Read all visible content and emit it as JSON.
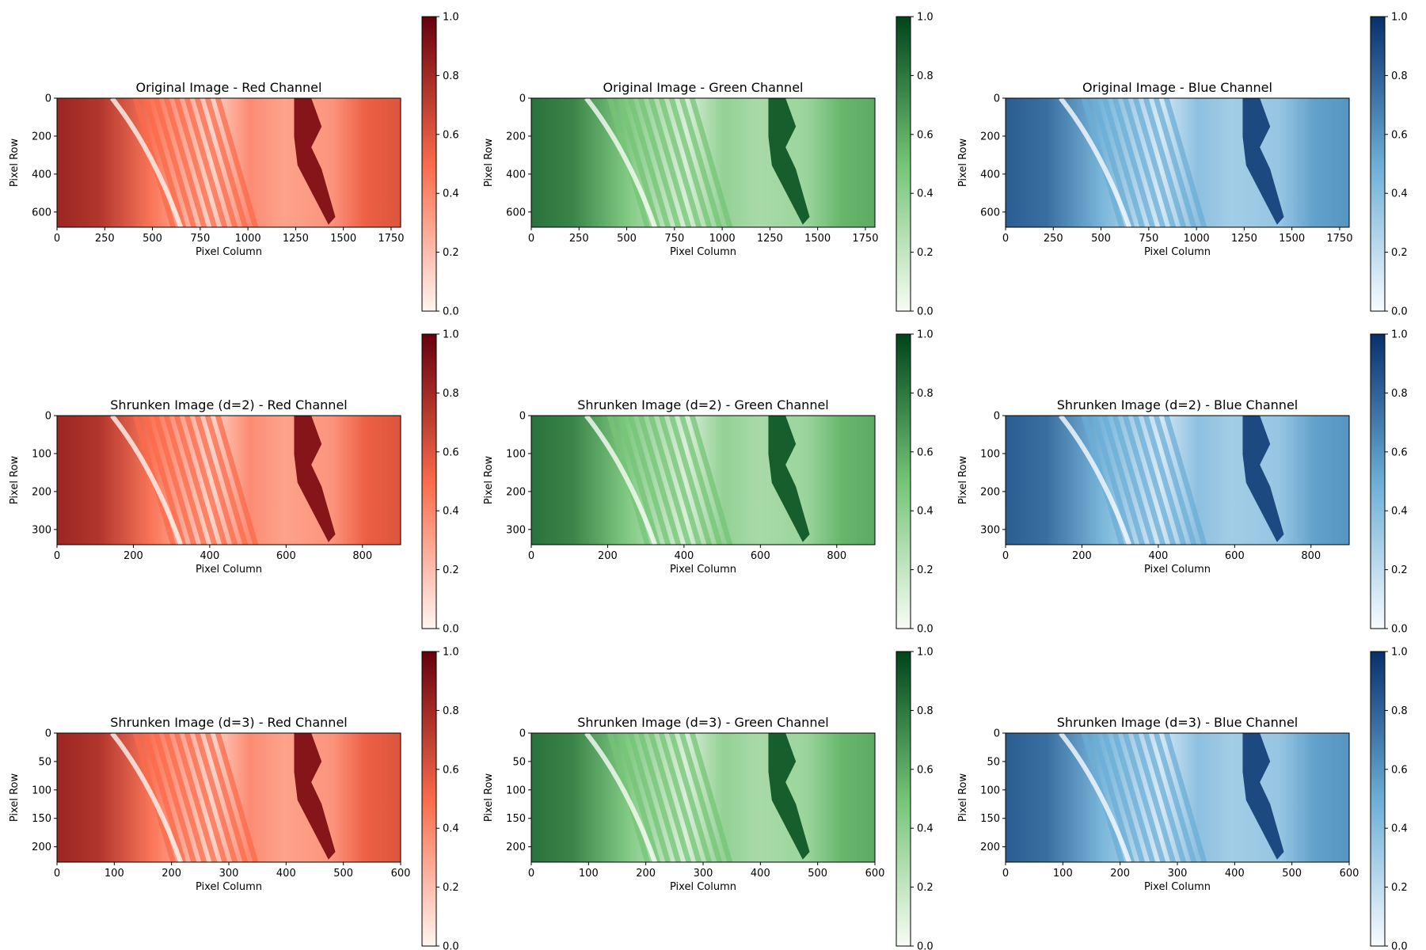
{
  "chart_data": [
    {
      "type": "heatmap",
      "title": "Original Image - Red Channel",
      "xlabel": "Pixel Column",
      "ylabel": "Pixel Row",
      "cmap": "Reds",
      "xlim": [
        0,
        1800
      ],
      "ylim": [
        680,
        0
      ],
      "xticks": [
        0,
        250,
        500,
        750,
        1000,
        1250,
        1500,
        1750
      ],
      "yticks": [
        0,
        200,
        400,
        600
      ],
      "colorbar": {
        "min": 0.0,
        "max": 1.0,
        "ticks": [
          "0.0",
          "0.2",
          "0.4",
          "0.6",
          "0.8",
          "1.0"
        ]
      }
    },
    {
      "type": "heatmap",
      "title": "Original Image - Green Channel",
      "xlabel": "Pixel Column",
      "ylabel": "Pixel Row",
      "cmap": "Greens",
      "xlim": [
        0,
        1800
      ],
      "ylim": [
        680,
        0
      ],
      "xticks": [
        0,
        250,
        500,
        750,
        1000,
        1250,
        1500,
        1750
      ],
      "yticks": [
        0,
        200,
        400,
        600
      ],
      "colorbar": {
        "min": 0.0,
        "max": 1.0,
        "ticks": [
          "0.0",
          "0.2",
          "0.4",
          "0.6",
          "0.8",
          "1.0"
        ]
      }
    },
    {
      "type": "heatmap",
      "title": "Original Image - Blue Channel",
      "xlabel": "Pixel Column",
      "ylabel": "Pixel Row",
      "cmap": "Blues",
      "xlim": [
        0,
        1800
      ],
      "ylim": [
        680,
        0
      ],
      "xticks": [
        0,
        250,
        500,
        750,
        1000,
        1250,
        1500,
        1750
      ],
      "yticks": [
        0,
        200,
        400,
        600
      ],
      "colorbar": {
        "min": 0.0,
        "max": 1.0,
        "ticks": [
          "0.0",
          "0.2",
          "0.4",
          "0.6",
          "0.8",
          "1.0"
        ]
      }
    },
    {
      "type": "heatmap",
      "title": "Shrunken Image (d=2) - Red Channel",
      "xlabel": "Pixel Column",
      "ylabel": "Pixel Row",
      "cmap": "Reds",
      "xlim": [
        0,
        900
      ],
      "ylim": [
        340,
        0
      ],
      "xticks": [
        0,
        200,
        400,
        600,
        800
      ],
      "yticks": [
        0,
        100,
        200,
        300
      ],
      "colorbar": {
        "min": 0.0,
        "max": 1.0,
        "ticks": [
          "0.0",
          "0.2",
          "0.4",
          "0.6",
          "0.8",
          "1.0"
        ]
      }
    },
    {
      "type": "heatmap",
      "title": "Shrunken Image (d=2) - Green Channel",
      "xlabel": "Pixel Column",
      "ylabel": "Pixel Row",
      "cmap": "Greens",
      "xlim": [
        0,
        900
      ],
      "ylim": [
        340,
        0
      ],
      "xticks": [
        0,
        200,
        400,
        600,
        800
      ],
      "yticks": [
        0,
        100,
        200,
        300
      ],
      "colorbar": {
        "min": 0.0,
        "max": 1.0,
        "ticks": [
          "0.0",
          "0.2",
          "0.4",
          "0.6",
          "0.8",
          "1.0"
        ]
      }
    },
    {
      "type": "heatmap",
      "title": "Shrunken Image (d=2) - Blue Channel",
      "xlabel": "Pixel Column",
      "ylabel": "Pixel Row",
      "cmap": "Blues",
      "xlim": [
        0,
        900
      ],
      "ylim": [
        340,
        0
      ],
      "xticks": [
        0,
        200,
        400,
        600,
        800
      ],
      "yticks": [
        0,
        100,
        200,
        300
      ],
      "colorbar": {
        "min": 0.0,
        "max": 1.0,
        "ticks": [
          "0.0",
          "0.2",
          "0.4",
          "0.6",
          "0.8",
          "1.0"
        ]
      }
    },
    {
      "type": "heatmap",
      "title": "Shrunken Image (d=3) - Red Channel",
      "xlabel": "Pixel Column",
      "ylabel": "Pixel Row",
      "cmap": "Reds",
      "xlim": [
        0,
        600
      ],
      "ylim": [
        227,
        0
      ],
      "xticks": [
        0,
        100,
        200,
        300,
        400,
        500,
        600
      ],
      "yticks": [
        0,
        50,
        100,
        150,
        200
      ],
      "colorbar": {
        "min": 0.0,
        "max": 1.0,
        "ticks": [
          "0.0",
          "0.2",
          "0.4",
          "0.6",
          "0.8",
          "1.0"
        ]
      }
    },
    {
      "type": "heatmap",
      "title": "Shrunken Image (d=3) - Green Channel",
      "xlabel": "Pixel Column",
      "ylabel": "Pixel Row",
      "cmap": "Greens",
      "xlim": [
        0,
        600
      ],
      "ylim": [
        227,
        0
      ],
      "xticks": [
        0,
        100,
        200,
        300,
        400,
        500,
        600
      ],
      "yticks": [
        0,
        50,
        100,
        150,
        200
      ],
      "colorbar": {
        "min": 0.0,
        "max": 1.0,
        "ticks": [
          "0.0",
          "0.2",
          "0.4",
          "0.6",
          "0.8",
          "1.0"
        ]
      }
    },
    {
      "type": "heatmap",
      "title": "Shrunken Image (d=3) - Blue Channel",
      "xlabel": "Pixel Column",
      "ylabel": "Pixel Row",
      "cmap": "Blues",
      "xlim": [
        0,
        600
      ],
      "ylim": [
        227,
        0
      ],
      "xticks": [
        0,
        100,
        200,
        300,
        400,
        500,
        600
      ],
      "yticks": [
        0,
        50,
        100,
        150,
        200
      ],
      "colorbar": {
        "min": 0.0,
        "max": 1.0,
        "ticks": [
          "0.0",
          "0.2",
          "0.4",
          "0.6",
          "0.8",
          "1.0"
        ]
      }
    }
  ],
  "colormaps": {
    "Reds": {
      "low": "#fff5f0",
      "mid": "#fb6a4a",
      "high": "#67000d"
    },
    "Greens": {
      "low": "#f7fcf5",
      "mid": "#74c476",
      "high": "#00441b"
    },
    "Blues": {
      "low": "#f7fbff",
      "mid": "#6baed6",
      "high": "#08306b"
    }
  }
}
